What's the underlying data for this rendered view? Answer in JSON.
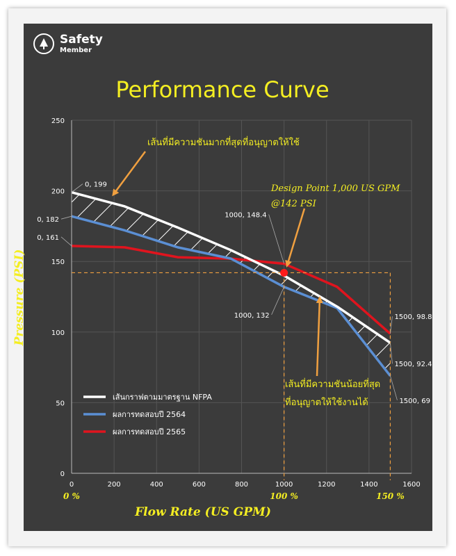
{
  "brand": {
    "name": "Safety",
    "sub": "Member"
  },
  "chart_data": {
    "type": "line",
    "title": "Performance Curve",
    "xlabel": "Flow Rate (US GPM)",
    "ylabel": "Pressure (PSI)",
    "xlim": [
      0,
      1600
    ],
    "ylim": [
      0,
      250
    ],
    "xticks": [
      0,
      200,
      400,
      600,
      800,
      1000,
      1200,
      1400,
      1600
    ],
    "yticks": [
      0,
      50,
      100,
      150,
      200,
      250
    ],
    "x_percent_labels": [
      {
        "x": 0,
        "label": "0 %"
      },
      {
        "x": 1000,
        "label": "100 %"
      },
      {
        "x": 1500,
        "label": "150 %"
      }
    ],
    "legend_position": "bottom-left",
    "series": [
      {
        "name": "เส้นกราฟตามมาตรฐาน NFPA",
        "color": "#ffffff",
        "points": [
          [
            0,
            199
          ],
          [
            250,
            189
          ],
          [
            500,
            174
          ],
          [
            750,
            158
          ],
          [
            1000,
            140
          ],
          [
            1250,
            118
          ],
          [
            1500,
            92.4
          ]
        ]
      },
      {
        "name": "ผลการทดสอบปี 2564",
        "color": "#5b8fd4",
        "points": [
          [
            0,
            182
          ],
          [
            250,
            172
          ],
          [
            500,
            160
          ],
          [
            750,
            152
          ],
          [
            1000,
            132
          ],
          [
            1250,
            117
          ],
          [
            1500,
            69
          ]
        ]
      },
      {
        "name": "ผลการทดสอบปี 2565",
        "color": "#e0141e",
        "points": [
          [
            0,
            161
          ],
          [
            250,
            160
          ],
          [
            500,
            153
          ],
          [
            750,
            152
          ],
          [
            1000,
            148.4
          ],
          [
            1250,
            132
          ],
          [
            1500,
            98.8
          ]
        ]
      }
    ],
    "point_labels": [
      {
        "x": 0,
        "y": 199,
        "text": "0, 199"
      },
      {
        "x": 0,
        "y": 182,
        "text": "0, 182"
      },
      {
        "x": 0,
        "y": 161,
        "text": "0, 161"
      },
      {
        "x": 1000,
        "y": 148.4,
        "text": "1000, 148.4"
      },
      {
        "x": 1000,
        "y": 132,
        "text": "1000, 132"
      },
      {
        "x": 1500,
        "y": 98.8,
        "text": "1500, 98.8"
      },
      {
        "x": 1500,
        "y": 92.4,
        "text": "1500, 92.4"
      },
      {
        "x": 1500,
        "y": 69,
        "text": "1500, 69"
      }
    ],
    "design_point": {
      "x": 1000,
      "y": 142,
      "color": "#ff1a1a"
    },
    "annotations": {
      "design_line1": "Design Point 1,000 US GPM",
      "design_line2": "@142 PSI",
      "max_pressure": "เส้นที่มีความชันมากที่สุดที่อนุญาตให้ใช้",
      "min_pressure_line1": "เส้นที่มีความชันน้อยที่สุด",
      "min_pressure_line2": "ที่อนุญาตให้ใช้งานได้"
    },
    "reference_lines": {
      "y": 142,
      "x": [
        1000,
        1500
      ],
      "color": "#f0a040"
    },
    "colors": {
      "background": "#3b3b3b",
      "title": "#f4ee22",
      "axis_label": "#f4ee22",
      "annotation": "#f4ee22",
      "arrow": "#f0a040"
    }
  }
}
